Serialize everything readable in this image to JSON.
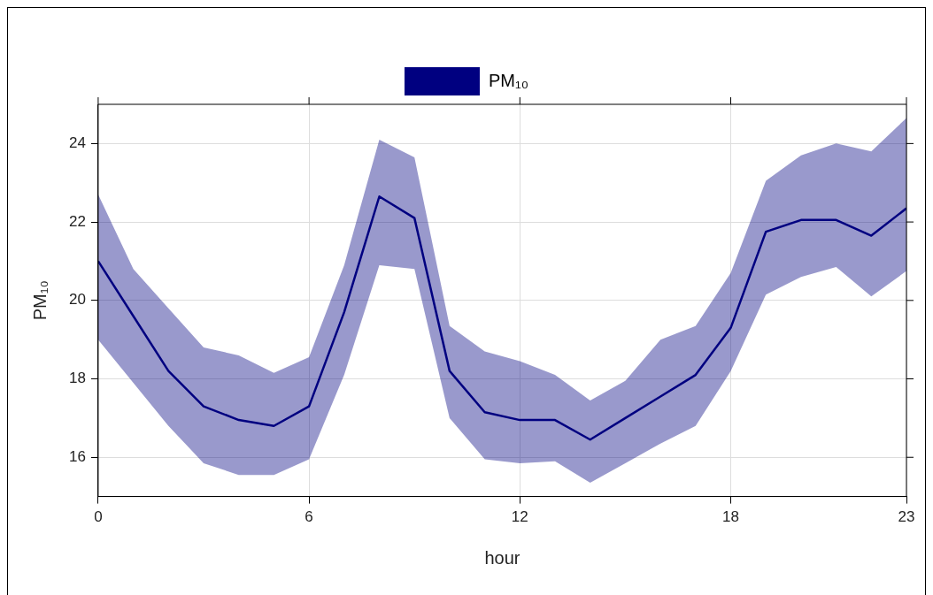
{
  "chart_data": {
    "type": "line",
    "xlabel": "hour",
    "ylabel": "PM₁₀",
    "x": [
      0,
      1,
      2,
      3,
      4,
      5,
      6,
      7,
      8,
      9,
      10,
      11,
      12,
      13,
      14,
      15,
      16,
      17,
      18,
      19,
      20,
      21,
      22,
      23
    ],
    "series": [
      {
        "name": "PM₁₀",
        "color": "#000080",
        "values": [
          21.0,
          19.6,
          18.2,
          17.3,
          16.95,
          16.8,
          17.3,
          19.7,
          22.65,
          22.1,
          18.2,
          17.15,
          16.95,
          16.95,
          16.45,
          17.0,
          17.55,
          18.1,
          19.3,
          21.75,
          22.05,
          22.05,
          21.65,
          22.35
        ],
        "upper": [
          22.7,
          20.8,
          19.8,
          18.8,
          18.6,
          18.15,
          18.55,
          20.9,
          24.1,
          23.65,
          19.35,
          18.7,
          18.45,
          18.1,
          17.45,
          17.95,
          19.0,
          19.35,
          20.7,
          23.05,
          23.7,
          24.0,
          23.8,
          24.65
        ],
        "lower": [
          19.0,
          17.9,
          16.8,
          15.85,
          15.55,
          15.55,
          15.95,
          18.1,
          20.9,
          20.8,
          17.0,
          15.95,
          15.85,
          15.9,
          15.35,
          15.85,
          16.35,
          16.8,
          18.2,
          20.15,
          20.6,
          20.85,
          20.1,
          20.75
        ]
      }
    ],
    "xlim": [
      0,
      23
    ],
    "xticks": [
      0,
      6,
      12,
      18,
      23
    ],
    "ylim": [
      15,
      25
    ],
    "yticks": [
      16,
      18,
      20,
      22,
      24
    ],
    "grid": true,
    "legend": "top",
    "marker": "none",
    "line_style": "solid"
  }
}
